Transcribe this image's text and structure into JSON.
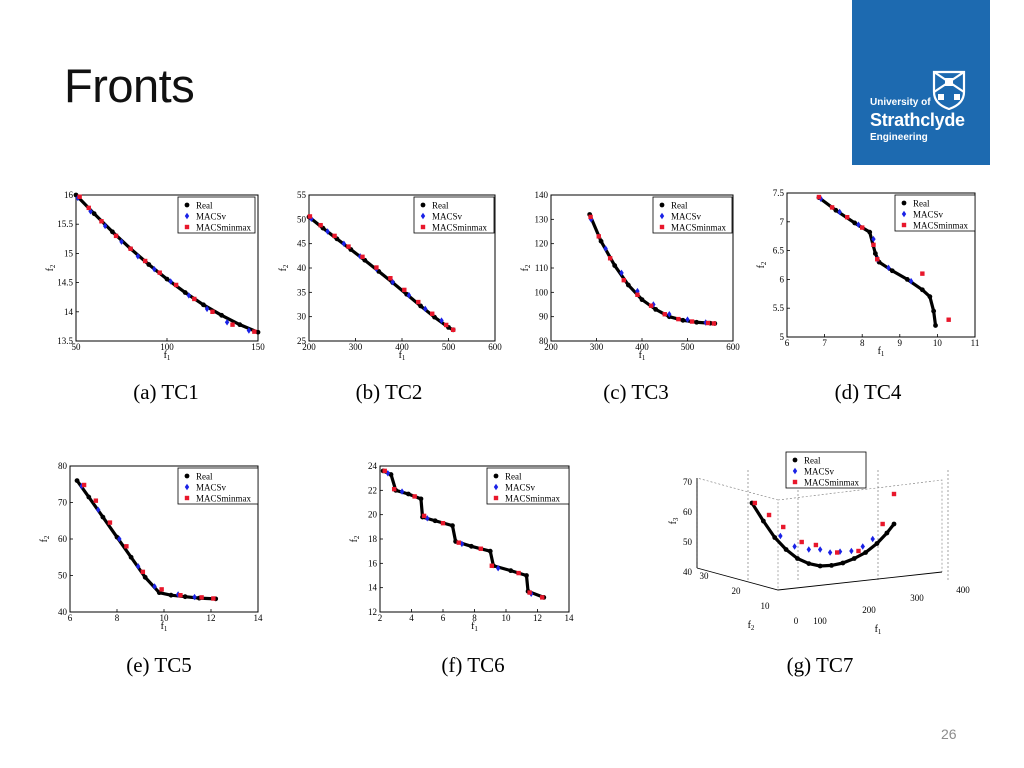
{
  "slide": {
    "title": "Fronts",
    "page_number": "26"
  },
  "logo": {
    "line1": "University of",
    "line2": "Strathclyde",
    "line3": "Engineering",
    "color": "#1d6ab0"
  },
  "colors": {
    "real": "#000000",
    "macsv": "#1a22e6",
    "macsminmax": "#e8172b"
  },
  "chart_data": [
    {
      "type": "scatter",
      "caption": "(a)  TC1",
      "xlabel": "f1",
      "ylabel": "f2",
      "xlim": [
        50,
        150
      ],
      "ylim": [
        13.5,
        16
      ],
      "xticks": [
        "50",
        "100",
        "150"
      ],
      "xtickvals": [
        50,
        100,
        150
      ],
      "yticks": [
        "13.5",
        "14",
        "14.5",
        "15",
        "15.5",
        "16"
      ],
      "ytickvals": [
        13.5,
        14,
        14.5,
        15,
        15.5,
        16
      ],
      "legend": [
        "Real",
        "MACSv",
        "MACSminmax"
      ],
      "series": [
        {
          "name": "Real",
          "x": [
            50,
            60,
            70,
            80,
            90,
            100,
            110,
            120,
            130,
            140,
            150
          ],
          "y": [
            16.0,
            15.68,
            15.37,
            15.08,
            14.81,
            14.56,
            14.33,
            14.12,
            13.94,
            13.78,
            13.65
          ]
        },
        {
          "name": "MACSv",
          "x": [
            51,
            58,
            66,
            75,
            84,
            93,
            102,
            112,
            122,
            133,
            145
          ],
          "y": [
            15.95,
            15.72,
            15.47,
            15.2,
            14.95,
            14.73,
            14.52,
            14.28,
            14.05,
            13.82,
            13.68
          ]
        },
        {
          "name": "MACSminmax",
          "x": [
            52,
            57,
            64,
            72,
            80,
            88,
            96,
            105,
            115,
            125,
            136,
            148
          ],
          "y": [
            15.97,
            15.78,
            15.55,
            15.3,
            15.08,
            14.87,
            14.67,
            14.46,
            14.22,
            14.0,
            13.78,
            13.66
          ]
        }
      ]
    },
    {
      "type": "scatter",
      "caption": "(b)  TC2",
      "xlabel": "f1",
      "ylabel": "f2",
      "xlim": [
        200,
        600
      ],
      "ylim": [
        25,
        55
      ],
      "xticks": [
        "200",
        "300",
        "400",
        "500",
        "600"
      ],
      "xtickvals": [
        200,
        300,
        400,
        500,
        600
      ],
      "yticks": [
        "25",
        "30",
        "35",
        "40",
        "45",
        "50",
        "55"
      ],
      "ytickvals": [
        25,
        30,
        35,
        40,
        45,
        50,
        55
      ],
      "legend": [
        "Real",
        "MACSv",
        "MACSminmax"
      ],
      "series": [
        {
          "name": "Real",
          "x": [
            200,
            230,
            260,
            290,
            320,
            350,
            380,
            410,
            440,
            470,
            500,
            510
          ],
          "y": [
            50.5,
            48.2,
            46.0,
            43.8,
            41.6,
            39.3,
            37.0,
            34.6,
            32.2,
            29.9,
            27.8,
            27.3
          ]
        },
        {
          "name": "MACSv",
          "x": [
            205,
            240,
            275,
            310,
            345,
            380,
            415,
            450,
            485
          ],
          "y": [
            50.1,
            47.5,
            45.0,
            42.4,
            39.8,
            37.1,
            34.4,
            31.6,
            29.2
          ]
        },
        {
          "name": "MACSminmax",
          "x": [
            202,
            225,
            255,
            285,
            315,
            345,
            375,
            405,
            435,
            465,
            495,
            510
          ],
          "y": [
            50.6,
            48.8,
            46.6,
            44.4,
            42.3,
            40.1,
            37.9,
            35.5,
            33.0,
            30.6,
            28.3,
            27.3
          ]
        }
      ]
    },
    {
      "type": "scatter",
      "caption": "(c)  TC3",
      "xlabel": "f1",
      "ylabel": "f2",
      "xlim": [
        200,
        600
      ],
      "ylim": [
        80,
        140
      ],
      "xticks": [
        "200",
        "300",
        "400",
        "500",
        "600"
      ],
      "xtickvals": [
        200,
        300,
        400,
        500,
        600
      ],
      "yticks": [
        "80",
        "90",
        "100",
        "110",
        "120",
        "130",
        "140"
      ],
      "ytickvals": [
        80,
        90,
        100,
        110,
        120,
        130,
        140
      ],
      "legend": [
        "Real",
        "MACSv",
        "MACSminmax"
      ],
      "series": [
        {
          "name": "Real",
          "x": [
            285,
            310,
            340,
            370,
            400,
            430,
            460,
            490,
            520,
            550,
            560
          ],
          "y": [
            132,
            121,
            111,
            103,
            97,
            93,
            90,
            88.5,
            87.7,
            87.3,
            87.2
          ]
        },
        {
          "name": "MACSv",
          "x": [
            288,
            320,
            355,
            390,
            425,
            460,
            500,
            540
          ],
          "y": [
            130,
            118,
            108,
            100.5,
            95,
            91,
            88.8,
            87.6
          ]
        },
        {
          "name": "MACSminmax",
          "x": [
            287,
            305,
            330,
            360,
            390,
            420,
            450,
            480,
            510,
            545,
            558
          ],
          "y": [
            131,
            123,
            114,
            105,
            99,
            94.5,
            91,
            89,
            88,
            87.4,
            87.2
          ]
        }
      ]
    },
    {
      "type": "scatter",
      "caption": "(d)  TC4",
      "xlabel": "f1",
      "ylabel": "f2",
      "xlim": [
        6,
        11
      ],
      "ylim": [
        5,
        7.5
      ],
      "xticks": [
        "6",
        "7",
        "8",
        "9",
        "10",
        "11"
      ],
      "xtickvals": [
        6,
        7,
        8,
        9,
        10,
        11
      ],
      "yticks": [
        "5",
        "5.5",
        "6",
        "6.5",
        "7",
        "7.5"
      ],
      "ytickvals": [
        5,
        5.5,
        6,
        6.5,
        7,
        7.5
      ],
      "legend": [
        "Real",
        "MACSv",
        "MACSminmax"
      ],
      "series": [
        {
          "name": "Real",
          "x": [
            6.85,
            7.3,
            7.8,
            8.2,
            8.35,
            8.45,
            8.8,
            9.2,
            9.6,
            9.8,
            9.9,
            9.95
          ],
          "y": [
            7.42,
            7.2,
            6.98,
            6.82,
            6.45,
            6.3,
            6.15,
            6.0,
            5.82,
            5.7,
            5.45,
            5.2
          ]
        },
        {
          "name": "MACSv",
          "x": [
            6.9,
            7.4,
            7.9,
            8.3,
            8.4,
            8.7,
            9.3
          ],
          "y": [
            7.4,
            7.17,
            6.95,
            6.7,
            6.35,
            6.2,
            5.97
          ]
        },
        {
          "name": "MACSminmax",
          "x": [
            6.85,
            7.2,
            7.6,
            8.0,
            8.3,
            8.4,
            9.6,
            10.3
          ],
          "y": [
            7.43,
            7.25,
            7.08,
            6.9,
            6.6,
            6.35,
            6.1,
            5.3
          ]
        }
      ]
    },
    {
      "type": "scatter",
      "caption": "(e)  TC5",
      "xlabel": "f1",
      "ylabel": "f2",
      "xlim": [
        6,
        14
      ],
      "ylim": [
        40,
        80
      ],
      "xticks": [
        "6",
        "8",
        "10",
        "12",
        "14"
      ],
      "xtickvals": [
        6,
        8,
        10,
        12,
        14
      ],
      "yticks": [
        "40",
        "50",
        "60",
        "70",
        "80"
      ],
      "ytickvals": [
        40,
        50,
        60,
        70,
        80
      ],
      "legend": [
        "Real",
        "MACSv",
        "MACSminmax"
      ],
      "series": [
        {
          "name": "Real",
          "x": [
            6.3,
            6.8,
            7.4,
            8.0,
            8.6,
            9.2,
            9.8,
            10.3,
            10.9,
            11.5,
            12.2
          ],
          "y": [
            76,
            71.5,
            66,
            60.5,
            55,
            49.5,
            45.3,
            44.6,
            44.2,
            43.8,
            43.6
          ]
        },
        {
          "name": "MACSv",
          "x": [
            6.5,
            7.2,
            8.1,
            8.9,
            9.6,
            10.6,
            11.3
          ],
          "y": [
            74.5,
            68,
            60,
            52.5,
            47,
            44.8,
            44.1
          ]
        },
        {
          "name": "MACSminmax",
          "x": [
            6.6,
            7.1,
            7.7,
            8.4,
            9.1,
            9.9,
            10.7,
            11.6,
            12.1
          ],
          "y": [
            74.8,
            70.5,
            64.5,
            58,
            51,
            46.2,
            44.6,
            44.0,
            43.7
          ]
        }
      ]
    },
    {
      "type": "scatter",
      "caption": "(f)  TC6",
      "xlabel": "f1",
      "ylabel": "f2",
      "xlim": [
        2,
        14
      ],
      "ylim": [
        12,
        24
      ],
      "xticks": [
        "2",
        "4",
        "6",
        "8",
        "10",
        "12",
        "14"
      ],
      "xtickvals": [
        2,
        4,
        6,
        8,
        10,
        12,
        14
      ],
      "yticks": [
        "12",
        "14",
        "16",
        "18",
        "20",
        "22",
        "24"
      ],
      "ytickvals": [
        12,
        14,
        16,
        18,
        20,
        22,
        24
      ],
      "legend": [
        "Real",
        "MACSv",
        "MACSminmax"
      ],
      "series": [
        {
          "name": "Real",
          "x": [
            2.2,
            2.7,
            3.0,
            3.8,
            4.6,
            4.7,
            5.5,
            6.6,
            6.8,
            7.8,
            9.0,
            9.2,
            10.3,
            11.3,
            11.4,
            12.4
          ],
          "y": [
            23.6,
            23.3,
            22.0,
            21.7,
            21.3,
            19.8,
            19.5,
            19.1,
            17.8,
            17.4,
            17.0,
            15.8,
            15.4,
            15.0,
            13.7,
            13.2
          ]
        },
        {
          "name": "MACSv",
          "x": [
            2.5,
            3.4,
            5.0,
            7.2,
            9.5,
            11.6
          ],
          "y": [
            23.4,
            21.9,
            19.7,
            17.6,
            15.6,
            13.5
          ]
        },
        {
          "name": "MACSminmax",
          "x": [
            2.3,
            2.9,
            4.2,
            4.8,
            6.0,
            7.0,
            8.4,
            9.1,
            10.8,
            11.5,
            12.3
          ],
          "y": [
            23.6,
            22.1,
            21.5,
            19.9,
            19.3,
            17.7,
            17.2,
            15.8,
            15.2,
            13.6,
            13.2
          ]
        }
      ]
    },
    {
      "type": "scatter",
      "caption": "(g)  TC7",
      "xlabel": "f1",
      "ylabel": "f2",
      "zlabel": "f3",
      "xlim": [
        100,
        400
      ],
      "ylim": [
        0,
        30
      ],
      "zlim": [
        40,
        70
      ],
      "xticks": [
        "100",
        "200",
        "300",
        "400"
      ],
      "xtickvals": [
        100,
        200,
        300,
        400
      ],
      "yticks": [
        "0",
        "10",
        "20",
        "30"
      ],
      "ytickvals": [
        0,
        10,
        20,
        30
      ],
      "zticks": [
        "40",
        "50",
        "60",
        "70"
      ],
      "ztickvals": [
        40,
        50,
        60,
        70
      ],
      "legend": [
        "Real",
        "MACSv",
        "MACSminmax"
      ],
      "series": [
        {
          "name": "Real",
          "t": [
            0,
            0.08,
            0.16,
            0.24,
            0.32,
            0.4,
            0.48,
            0.56,
            0.64,
            0.72,
            0.8,
            0.88,
            0.95,
            1.0
          ],
          "z": [
            63,
            57,
            51.5,
            47.5,
            44.5,
            42.8,
            42.0,
            42.2,
            43.0,
            44.5,
            46.5,
            49.5,
            53,
            56
          ]
        },
        {
          "name": "MACSv",
          "t": [
            0.2,
            0.3,
            0.4,
            0.48,
            0.55,
            0.62,
            0.7,
            0.78,
            0.85
          ],
          "z": [
            52,
            48.5,
            47.5,
            47.5,
            46.5,
            46.8,
            47,
            48.5,
            51
          ]
        },
        {
          "name": "MACSminmax",
          "t": [
            0.02,
            0.12,
            0.22,
            0.35,
            0.45,
            0.6,
            0.75,
            0.92,
            1.0
          ],
          "z": [
            63,
            59,
            55,
            50,
            49,
            46.5,
            47,
            56,
            66
          ]
        }
      ]
    }
  ]
}
